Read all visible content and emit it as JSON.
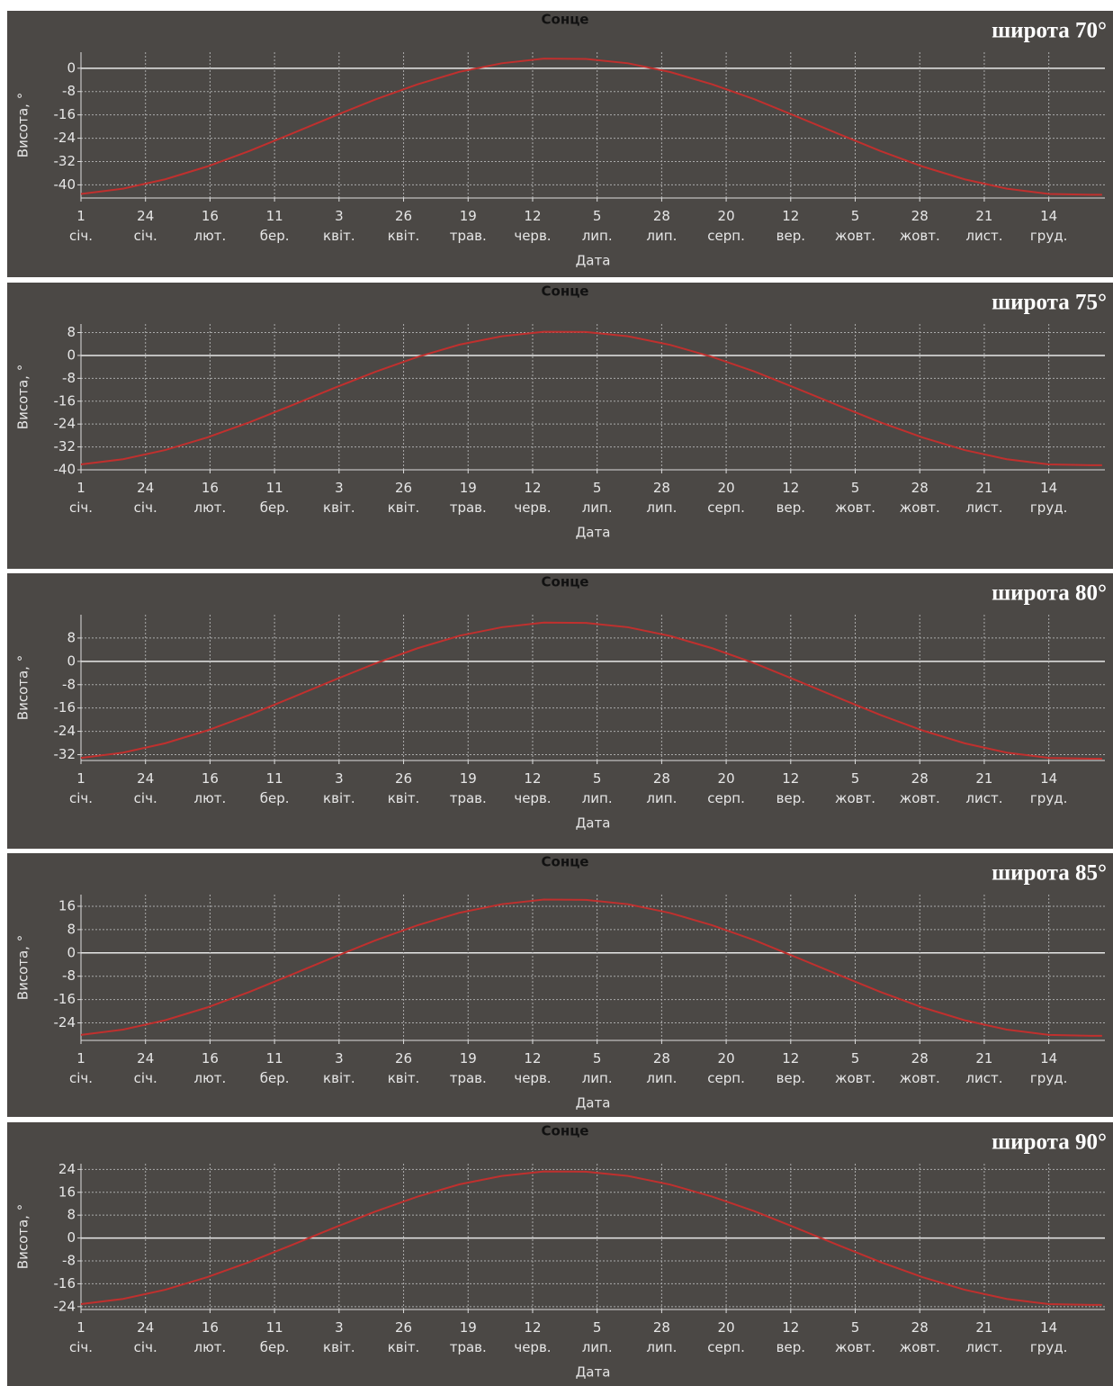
{
  "chart_data": [
    {
      "type": "line",
      "title": "Сонце",
      "annotation": "широта 70°",
      "x_label": "Дата",
      "y_label": "Висота, °",
      "x": [
        0,
        15,
        30,
        45,
        60,
        75,
        90,
        105,
        120,
        135,
        150,
        165,
        180,
        195,
        210,
        225,
        240,
        255,
        270,
        285,
        300,
        315,
        330,
        345,
        360,
        364
      ],
      "values": [
        -43.1,
        -41.3,
        -38.1,
        -33.7,
        -28.4,
        -22.5,
        -16.5,
        -10.7,
        -5.5,
        -1.2,
        1.7,
        3.3,
        3.2,
        1.7,
        -1.3,
        -5.5,
        -10.6,
        -16.5,
        -22.5,
        -28.4,
        -33.7,
        -38.1,
        -41.3,
        -43.1,
        -43.4,
        -43.4
      ],
      "color": "#c0302e",
      "xlim": [
        0,
        365
      ],
      "xticks": [
        {
          "value": 0,
          "label": "1\nсіч."
        },
        {
          "value": 23,
          "label": "24\nсіч."
        },
        {
          "value": 46,
          "label": "16\nлют."
        },
        {
          "value": 69,
          "label": "11\nбер."
        },
        {
          "value": 92,
          "label": "3\nквіт."
        },
        {
          "value": 115,
          "label": "26\nквіт."
        },
        {
          "value": 138,
          "label": "19\nтрав."
        },
        {
          "value": 161,
          "label": "12\nчерв."
        },
        {
          "value": 184,
          "label": "5\nлип."
        },
        {
          "value": 207,
          "label": "28\nлип."
        },
        {
          "value": 230,
          "label": "20\nсерп."
        },
        {
          "value": 253,
          "label": "12\nвер."
        },
        {
          "value": 276,
          "label": "5\nжовт."
        },
        {
          "value": 299,
          "label": "28\nжовт."
        },
        {
          "value": 322,
          "label": "21\nлист."
        },
        {
          "value": 345,
          "label": "14\nгруд."
        }
      ],
      "ylim": [
        -44.5,
        5.5
      ],
      "yticks": [
        0,
        -8,
        -16,
        -24,
        -32,
        -40
      ],
      "grid": true
    },
    {
      "type": "line",
      "title": "Сонце",
      "annotation": "широта 75°",
      "x_label": "Дата",
      "y_label": "Висота, °",
      "x": [
        0,
        15,
        30,
        45,
        60,
        75,
        90,
        105,
        120,
        135,
        150,
        165,
        180,
        195,
        210,
        225,
        240,
        255,
        270,
        285,
        300,
        315,
        330,
        345,
        360,
        364
      ],
      "values": [
        -38.1,
        -36.3,
        -33.1,
        -28.7,
        -23.4,
        -17.5,
        -11.5,
        -5.7,
        -0.5,
        3.8,
        6.7,
        8.3,
        8.2,
        6.7,
        3.7,
        -0.5,
        -5.6,
        -11.5,
        -17.5,
        -23.4,
        -28.7,
        -33.1,
        -36.3,
        -38.1,
        -38.4,
        -38.4
      ],
      "color": "#c0302e",
      "xlim": [
        0,
        365
      ],
      "xticks": [
        {
          "value": 0,
          "label": "1\nсіч."
        },
        {
          "value": 23,
          "label": "24\nсіч."
        },
        {
          "value": 46,
          "label": "16\nлют."
        },
        {
          "value": 69,
          "label": "11\nбер."
        },
        {
          "value": 92,
          "label": "3\nквіт."
        },
        {
          "value": 115,
          "label": "26\nквіт."
        },
        {
          "value": 138,
          "label": "19\nтрав."
        },
        {
          "value": 161,
          "label": "12\nчерв."
        },
        {
          "value": 184,
          "label": "5\nлип."
        },
        {
          "value": 207,
          "label": "28\nлип."
        },
        {
          "value": 230,
          "label": "20\nсерп."
        },
        {
          "value": 253,
          "label": "12\nвер."
        },
        {
          "value": 276,
          "label": "5\nжовт."
        },
        {
          "value": 299,
          "label": "28\nжовт."
        },
        {
          "value": 322,
          "label": "21\nлист."
        },
        {
          "value": 345,
          "label": "14\nгруд."
        }
      ],
      "ylim": [
        -40,
        11
      ],
      "yticks": [
        8,
        0,
        -8,
        -16,
        -24,
        -32,
        -40
      ],
      "grid": true
    },
    {
      "type": "line",
      "title": "Сонце",
      "annotation": "широта 80°",
      "x_label": "Дата",
      "y_label": "Висота, °",
      "x": [
        0,
        15,
        30,
        45,
        60,
        75,
        90,
        105,
        120,
        135,
        150,
        165,
        180,
        195,
        210,
        225,
        240,
        255,
        270,
        285,
        300,
        315,
        330,
        345,
        360,
        364
      ],
      "values": [
        -33.1,
        -31.3,
        -28.1,
        -23.7,
        -18.4,
        -12.5,
        -6.5,
        -0.7,
        4.5,
        8.8,
        11.7,
        13.3,
        13.2,
        11.7,
        8.7,
        4.5,
        -0.6,
        -6.5,
        -12.5,
        -18.4,
        -23.7,
        -28.1,
        -31.3,
        -33.1,
        -33.4,
        -33.4
      ],
      "color": "#c0302e",
      "xlim": [
        0,
        365
      ],
      "xticks": [
        {
          "value": 0,
          "label": "1\nсіч."
        },
        {
          "value": 23,
          "label": "24\nсіч."
        },
        {
          "value": 46,
          "label": "16\nлют."
        },
        {
          "value": 69,
          "label": "11\nбер."
        },
        {
          "value": 92,
          "label": "3\nквіт."
        },
        {
          "value": 115,
          "label": "26\nквіт."
        },
        {
          "value": 138,
          "label": "19\nтрав."
        },
        {
          "value": 161,
          "label": "12\nчерв."
        },
        {
          "value": 184,
          "label": "5\nлип."
        },
        {
          "value": 207,
          "label": "28\nлип."
        },
        {
          "value": 230,
          "label": "20\nсерп."
        },
        {
          "value": 253,
          "label": "12\nвер."
        },
        {
          "value": 276,
          "label": "5\nжовт."
        },
        {
          "value": 299,
          "label": "28\nжовт."
        },
        {
          "value": 322,
          "label": "21\nлист."
        },
        {
          "value": 345,
          "label": "14\nгруд."
        }
      ],
      "ylim": [
        -34,
        16
      ],
      "yticks": [
        8,
        0,
        -8,
        -16,
        -24,
        -32
      ],
      "grid": true
    },
    {
      "type": "line",
      "title": "Сонце",
      "annotation": "широта 85°",
      "x_label": "Дата",
      "y_label": "Висота, °",
      "x": [
        0,
        15,
        30,
        45,
        60,
        75,
        90,
        105,
        120,
        135,
        150,
        165,
        180,
        195,
        210,
        225,
        240,
        255,
        270,
        285,
        300,
        315,
        330,
        345,
        360,
        364
      ],
      "values": [
        -28.1,
        -26.3,
        -23.1,
        -18.7,
        -13.4,
        -7.5,
        -1.5,
        4.3,
        9.5,
        13.8,
        16.7,
        18.3,
        18.2,
        16.7,
        13.7,
        9.5,
        4.4,
        -1.5,
        -7.5,
        -13.4,
        -18.7,
        -23.1,
        -26.3,
        -28.1,
        -28.4,
        -28.4
      ],
      "color": "#c0302e",
      "xlim": [
        0,
        365
      ],
      "xticks": [
        {
          "value": 0,
          "label": "1\nсіч."
        },
        {
          "value": 23,
          "label": "24\nсіч."
        },
        {
          "value": 46,
          "label": "16\nлют."
        },
        {
          "value": 69,
          "label": "11\nбер."
        },
        {
          "value": 92,
          "label": "3\nквіт."
        },
        {
          "value": 115,
          "label": "26\nквіт."
        },
        {
          "value": 138,
          "label": "19\nтрав."
        },
        {
          "value": 161,
          "label": "12\nчерв."
        },
        {
          "value": 184,
          "label": "5\nлип."
        },
        {
          "value": 207,
          "label": "28\nлип."
        },
        {
          "value": 230,
          "label": "20\nсерп."
        },
        {
          "value": 253,
          "label": "12\nвер."
        },
        {
          "value": 276,
          "label": "5\nжовт."
        },
        {
          "value": 299,
          "label": "28\nжовт."
        },
        {
          "value": 322,
          "label": "21\nлист."
        },
        {
          "value": 345,
          "label": "14\nгруд."
        }
      ],
      "ylim": [
        -30,
        20
      ],
      "yticks": [
        16,
        8,
        0,
        -8,
        -16,
        -24
      ],
      "grid": true
    },
    {
      "type": "line",
      "title": "Сонце",
      "annotation": "широта 90°",
      "x_label": "Дата",
      "y_label": "Висота, °",
      "x": [
        0,
        15,
        30,
        45,
        60,
        75,
        90,
        105,
        120,
        135,
        150,
        165,
        180,
        195,
        210,
        225,
        240,
        255,
        270,
        285,
        300,
        315,
        330,
        345,
        360,
        364
      ],
      "values": [
        -23.1,
        -21.3,
        -18.1,
        -13.7,
        -8.4,
        -2.5,
        3.5,
        9.3,
        14.5,
        18.8,
        21.7,
        23.3,
        23.2,
        21.7,
        18.7,
        14.5,
        9.4,
        3.5,
        -2.5,
        -8.4,
        -13.7,
        -18.1,
        -21.3,
        -23.1,
        -23.4,
        -23.4
      ],
      "color": "#c0302e",
      "xlim": [
        0,
        365
      ],
      "xticks": [
        {
          "value": 0,
          "label": "1\nсіч."
        },
        {
          "value": 23,
          "label": "24\nсіч."
        },
        {
          "value": 46,
          "label": "16\nлют."
        },
        {
          "value": 69,
          "label": "11\nбер."
        },
        {
          "value": 92,
          "label": "3\nквіт."
        },
        {
          "value": 115,
          "label": "26\nквіт."
        },
        {
          "value": 138,
          "label": "19\nтрав."
        },
        {
          "value": 161,
          "label": "12\nчерв."
        },
        {
          "value": 184,
          "label": "5\nлип."
        },
        {
          "value": 207,
          "label": "28\nлип."
        },
        {
          "value": 230,
          "label": "20\nсерп."
        },
        {
          "value": 253,
          "label": "12\nвер."
        },
        {
          "value": 276,
          "label": "5\nжовт."
        },
        {
          "value": 299,
          "label": "28\nжовт."
        },
        {
          "value": 322,
          "label": "21\nлист."
        },
        {
          "value": 345,
          "label": "14\nгруд."
        }
      ],
      "ylim": [
        -25,
        26
      ],
      "yticks": [
        24,
        16,
        8,
        0,
        -8,
        -16,
        -24
      ],
      "grid": true
    }
  ]
}
